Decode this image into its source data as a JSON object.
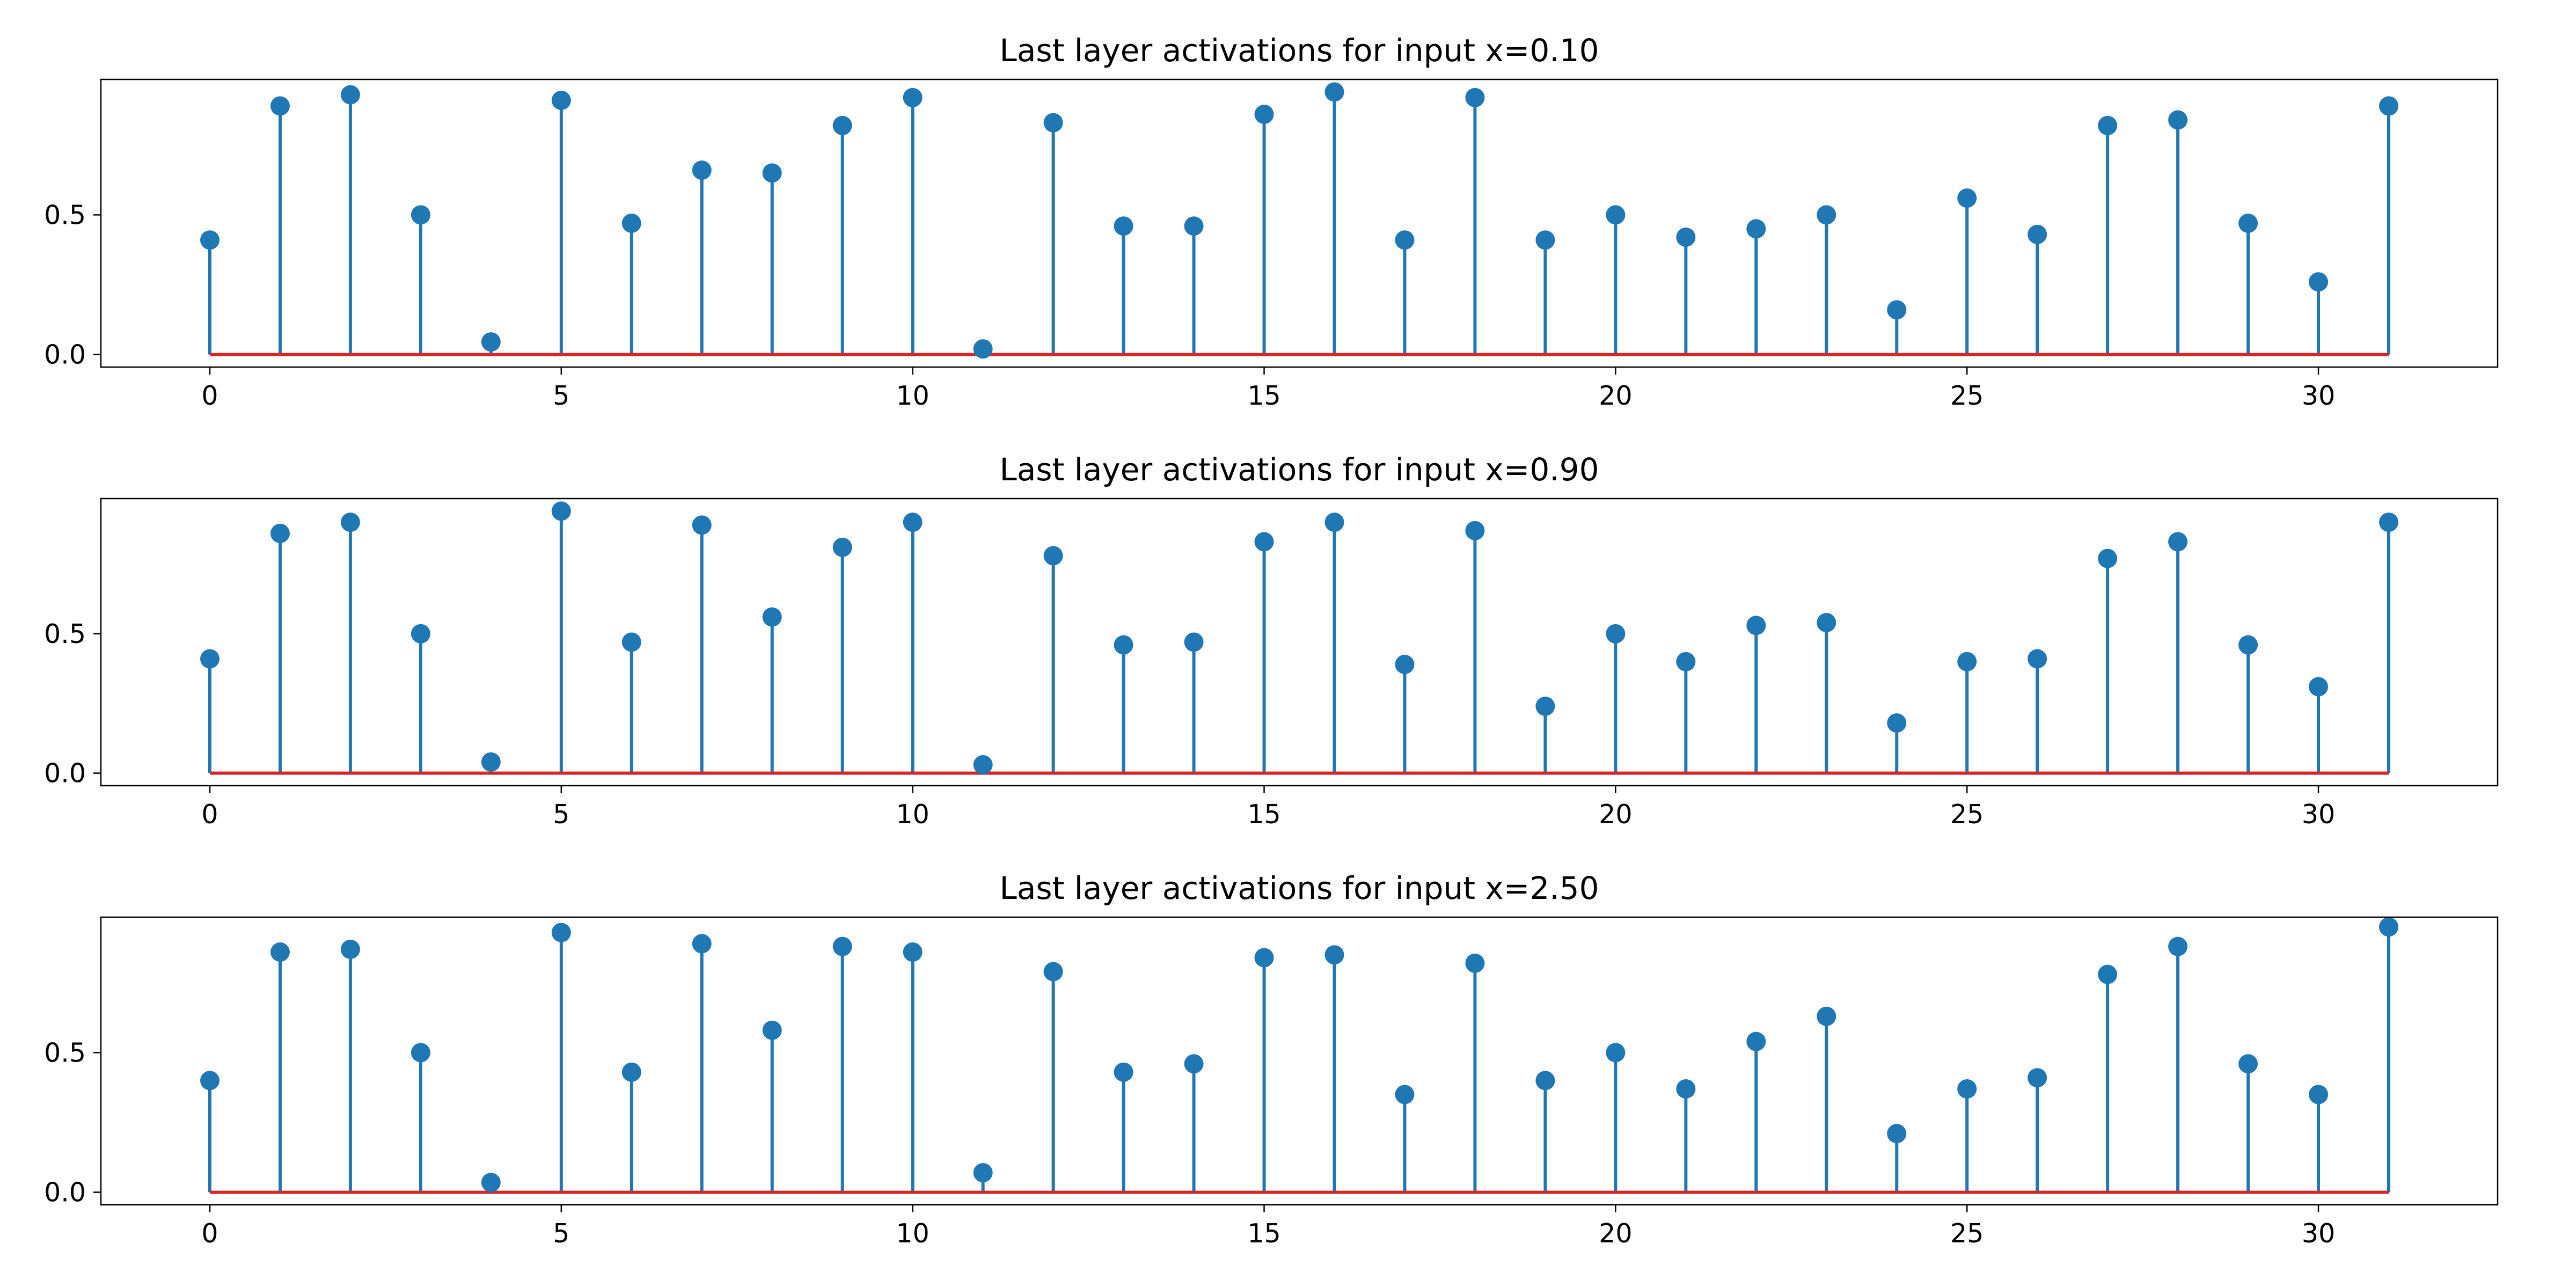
{
  "style": {
    "stem_color": "#1f77b4",
    "marker_color": "#1f77b4",
    "baseline_color": "#d62728"
  },
  "chart_data": [
    {
      "type": "stem",
      "title": "Last layer activations for input x=0.10",
      "xlabel": "",
      "ylabel": "",
      "xlim": [
        -1.55,
        32.55
      ],
      "ylim": [
        -0.045,
        0.985
      ],
      "xticks": [
        0,
        5,
        10,
        15,
        20,
        25,
        30
      ],
      "xtick_labels": [
        "0",
        "5",
        "10",
        "15",
        "20",
        "25",
        "30"
      ],
      "yticks": [
        0.0,
        0.5
      ],
      "ytick_labels": [
        "0.0",
        "0.5"
      ],
      "x": [
        0,
        1,
        2,
        3,
        4,
        5,
        6,
        7,
        8,
        9,
        10,
        11,
        12,
        13,
        14,
        15,
        16,
        17,
        18,
        19,
        20,
        21,
        22,
        23,
        24,
        25,
        26,
        27,
        28,
        29,
        30,
        31
      ],
      "values": [
        0.41,
        0.89,
        0.93,
        0.5,
        0.045,
        0.91,
        0.47,
        0.66,
        0.65,
        0.82,
        0.92,
        0.02,
        0.83,
        0.46,
        0.46,
        0.86,
        0.94,
        0.41,
        0.92,
        0.41,
        0.5,
        0.42,
        0.45,
        0.5,
        0.16,
        0.56,
        0.43,
        0.82,
        0.84,
        0.47,
        0.26,
        0.89
      ],
      "baseline": 0
    },
    {
      "type": "stem",
      "title": "Last layer activations for input x=0.90",
      "xlabel": "",
      "ylabel": "",
      "xlim": [
        -1.55,
        32.55
      ],
      "ylim": [
        -0.045,
        0.985
      ],
      "xticks": [
        0,
        5,
        10,
        15,
        20,
        25,
        30
      ],
      "xtick_labels": [
        "0",
        "5",
        "10",
        "15",
        "20",
        "25",
        "30"
      ],
      "yticks": [
        0.0,
        0.5
      ],
      "ytick_labels": [
        "0.0",
        "0.5"
      ],
      "x": [
        0,
        1,
        2,
        3,
        4,
        5,
        6,
        7,
        8,
        9,
        10,
        11,
        12,
        13,
        14,
        15,
        16,
        17,
        18,
        19,
        20,
        21,
        22,
        23,
        24,
        25,
        26,
        27,
        28,
        29,
        30,
        31
      ],
      "values": [
        0.41,
        0.86,
        0.9,
        0.5,
        0.04,
        0.94,
        0.47,
        0.89,
        0.56,
        0.81,
        0.9,
        0.03,
        0.78,
        0.46,
        0.47,
        0.83,
        0.9,
        0.39,
        0.87,
        0.24,
        0.5,
        0.4,
        0.53,
        0.54,
        0.18,
        0.4,
        0.41,
        0.77,
        0.83,
        0.46,
        0.31,
        0.9
      ],
      "baseline": 0
    },
    {
      "type": "stem",
      "title": "Last layer activations for input x=2.50",
      "xlabel": "",
      "ylabel": "",
      "xlim": [
        -1.55,
        32.55
      ],
      "ylim": [
        -0.045,
        0.985
      ],
      "xticks": [
        0,
        5,
        10,
        15,
        20,
        25,
        30
      ],
      "xtick_labels": [
        "0",
        "5",
        "10",
        "15",
        "20",
        "25",
        "30"
      ],
      "yticks": [
        0.0,
        0.5
      ],
      "ytick_labels": [
        "0.0",
        "0.5"
      ],
      "x": [
        0,
        1,
        2,
        3,
        4,
        5,
        6,
        7,
        8,
        9,
        10,
        11,
        12,
        13,
        14,
        15,
        16,
        17,
        18,
        19,
        20,
        21,
        22,
        23,
        24,
        25,
        26,
        27,
        28,
        29,
        30,
        31
      ],
      "values": [
        0.4,
        0.86,
        0.87,
        0.5,
        0.035,
        0.93,
        0.43,
        0.89,
        0.58,
        0.88,
        0.86,
        0.07,
        0.79,
        0.43,
        0.46,
        0.84,
        0.85,
        0.35,
        0.82,
        0.4,
        0.5,
        0.37,
        0.54,
        0.63,
        0.21,
        0.37,
        0.41,
        0.78,
        0.88,
        0.46,
        0.35,
        0.95
      ],
      "baseline": 0
    }
  ]
}
